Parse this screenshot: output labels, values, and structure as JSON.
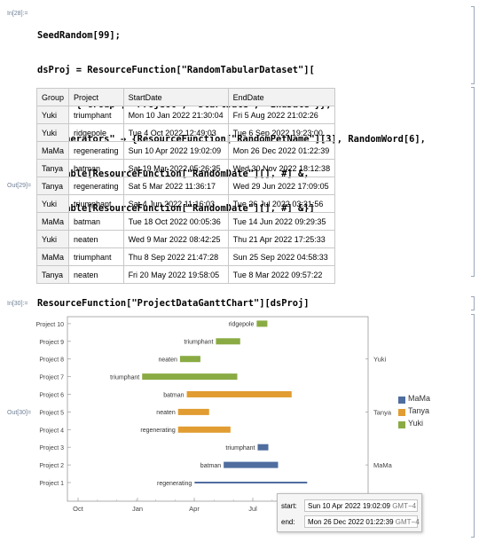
{
  "cells": {
    "in28": "In[28]:=",
    "out29": "Out[29]=",
    "in30": "In[30]:=",
    "out30": "Out[30]="
  },
  "code28": {
    "line1": "SeedRandom[99];",
    "line2": "dsProj = ResourceFunction[\"RandomTabularDataset\"][",
    "line3": "  {10, {\"Group\", \"Project\", \"StartDate\", \"EndDate\"}},",
    "line4": "  \"Generators\" → {ResourceFunction[\"RandomPetName\"][3], RandomWord[6],",
    "line5": "    Table[ResourceFunction[\"RandomDate\"][], #] &,",
    "line6": "    Table[ResourceFunction[\"RandomDate\"][], #] &}]"
  },
  "code30": "ResourceFunction[\"ProjectDataGanttChart\"][dsProj]",
  "table": {
    "headers": [
      "Group",
      "Project",
      "StartDate",
      "EndDate"
    ],
    "rows": [
      [
        "Yuki",
        "triumphant",
        "Mon 10 Jan 2022 21:30:04",
        "Fri 5 Aug 2022 21:02:26"
      ],
      [
        "Yuki",
        "ridgepole",
        "Tue 4 Oct 2022 12:49:03",
        "Tue 6 Sep 2022 19:23:00"
      ],
      [
        "MaMa",
        "regenerating",
        "Sun 10 Apr 2022 19:02:09",
        "Mon 26 Dec 2022 01:22:39"
      ],
      [
        "Tanya",
        "batman",
        "Sat 19 Mar 2022 05:26:35",
        "Wed 30 Nov 2022 18:12:38"
      ],
      [
        "Tanya",
        "regenerating",
        "Sat 5 Mar 2022 11:36:17",
        "Wed 29 Jun 2022 17:09:05"
      ],
      [
        "Yuki",
        "triumphant",
        "Sat 4 Jun 2022 11:16:03",
        "Tue 26 Jul 2022 03:31:56"
      ],
      [
        "MaMa",
        "batman",
        "Tue 18 Oct 2022 00:05:36",
        "Tue 14 Jun 2022 09:29:35"
      ],
      [
        "Yuki",
        "neaten",
        "Wed 9 Mar 2022 08:42:25",
        "Thu 21 Apr 2022 17:25:33"
      ],
      [
        "MaMa",
        "triumphant",
        "Thu 8 Sep 2022 21:47:28",
        "Sun 25 Sep 2022 04:58:33"
      ],
      [
        "Tanya",
        "neaten",
        "Fri 20 May 2022 19:58:05",
        "Tue 8 Mar 2022 09:57:22"
      ]
    ]
  },
  "chart_data": {
    "type": "bar",
    "x_ticks": [
      "Oct",
      "Jan",
      "Apr",
      "Jul"
    ],
    "y_categories": [
      "Project 1",
      "Project 2",
      "Project 3",
      "Project 4",
      "Project 5",
      "Project 6",
      "Project 7",
      "Project 8",
      "Project 9",
      "Project 10"
    ],
    "group_labels": [
      {
        "text": "MaMa",
        "row": 2
      },
      {
        "text": "Tanya",
        "row": 5
      },
      {
        "text": "Yuki",
        "row": 8
      }
    ],
    "series": [
      {
        "name": "MaMa",
        "color": "#4f6d9e"
      },
      {
        "name": "Tanya",
        "color": "#e19d32"
      },
      {
        "name": "Yuki",
        "color": "#8aab44"
      }
    ],
    "bars": [
      {
        "row": 1,
        "label": "regenerating",
        "group": "MaMa",
        "start": 6.0,
        "end": 11.8
      },
      {
        "row": 2,
        "label": "batman",
        "group": "MaMa",
        "start": 7.5,
        "end": 10.3
      },
      {
        "row": 3,
        "label": "triumphant",
        "group": "MaMa",
        "start": 9.25,
        "end": 9.8
      },
      {
        "row": 4,
        "label": "regenerating",
        "group": "Tanya",
        "start": 5.15,
        "end": 7.85
      },
      {
        "row": 5,
        "label": "neaten",
        "group": "Tanya",
        "start": 5.15,
        "end": 6.75
      },
      {
        "row": 6,
        "label": "batman",
        "group": "Tanya",
        "start": 5.6,
        "end": 11.0
      },
      {
        "row": 7,
        "label": "triumphant",
        "group": "Yuki",
        "start": 3.3,
        "end": 8.2
      },
      {
        "row": 8,
        "label": "neaten",
        "group": "Yuki",
        "start": 5.25,
        "end": 6.3
      },
      {
        "row": 9,
        "label": "triumphant",
        "group": "Yuki",
        "start": 7.1,
        "end": 8.35
      },
      {
        "row": 10,
        "label": "ridgepole",
        "group": "Yuki",
        "start": 9.2,
        "end": 9.75
      }
    ]
  },
  "tooltip": {
    "start_label": "start:",
    "start_value": "Sun 10 Apr 2022 19:02:09",
    "end_label": "end:",
    "end_value": "Mon 26 Dec 2022 01:22:39",
    "tz": "GMT−4"
  }
}
